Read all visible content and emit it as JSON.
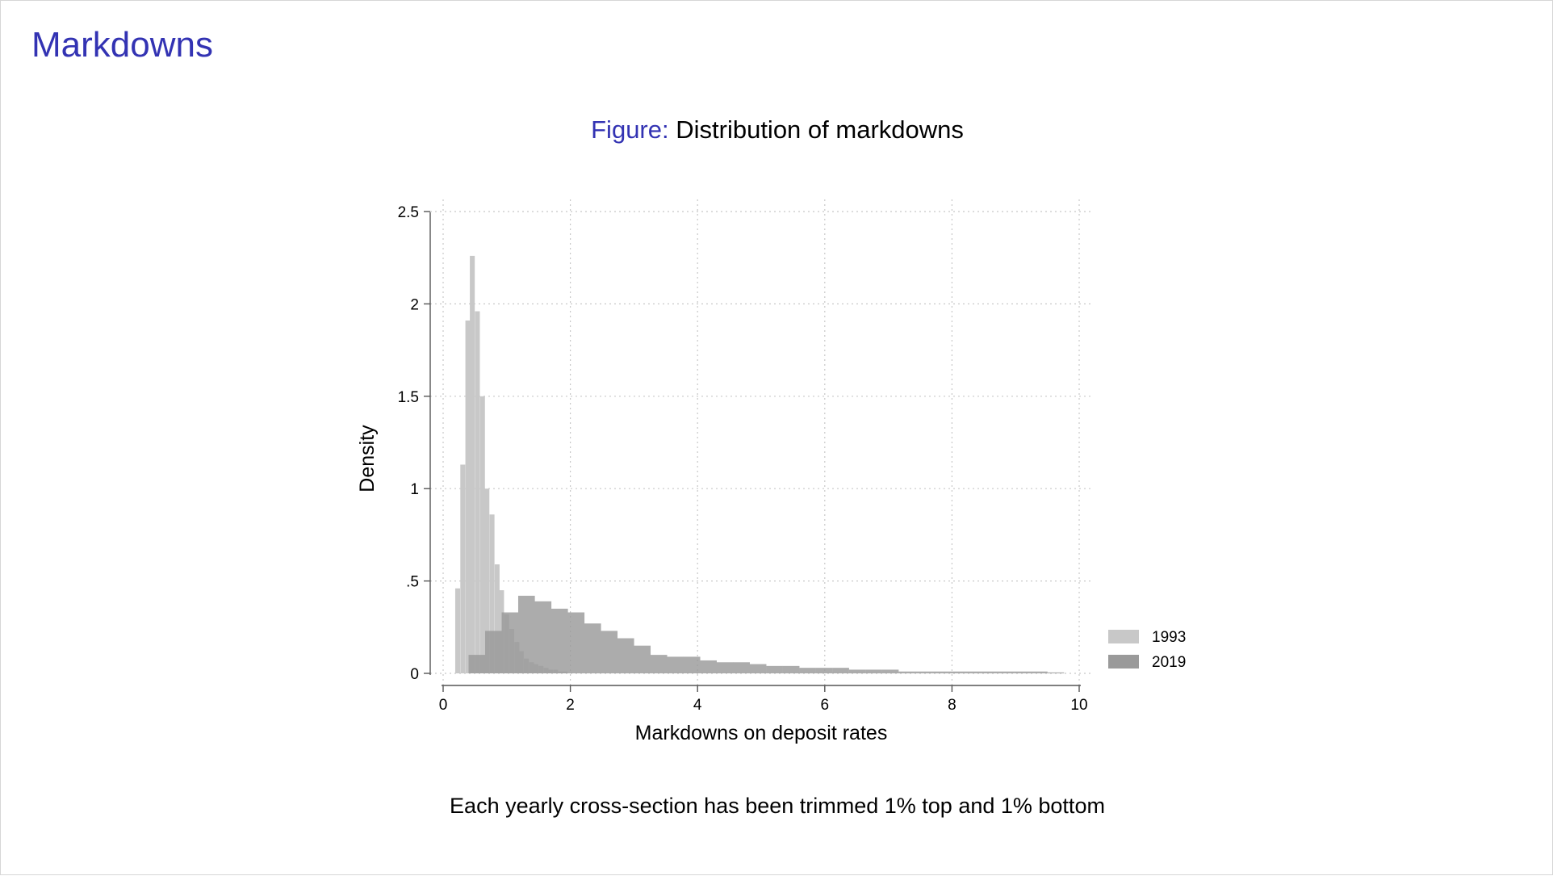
{
  "slide": {
    "title": "Markdowns"
  },
  "figure": {
    "label": "Figure:",
    "caption": "Distribution of markdowns",
    "note": "Each yearly cross-section has been trimmed 1% top and 1% bottom"
  },
  "colors": {
    "title_accent": "#3333b3",
    "series_1993": "#c8c8c8",
    "series_2019": "#9a9a9a",
    "overlap": "#8c8c8c"
  },
  "chart_data": {
    "type": "bar",
    "title": "",
    "xlabel": "Markdowns on deposit rates",
    "ylabel": "Density",
    "xlim": [
      0,
      10
    ],
    "ylim": [
      0,
      2.5
    ],
    "xticks": [
      0,
      2,
      4,
      6,
      8,
      10
    ],
    "xtick_labels": [
      "0",
      "2",
      "4",
      "6",
      "8",
      "10"
    ],
    "yticks": [
      0,
      0.5,
      1,
      1.5,
      2,
      2.5
    ],
    "ytick_labels": [
      "0",
      ".5",
      "1",
      "1.5",
      "2",
      "2.5"
    ],
    "grid": true,
    "legend_position": "right",
    "series": [
      {
        "name": "1993",
        "bin_width": 0.077,
        "bins": [
          {
            "x0": 0.19,
            "y": 0.46
          },
          {
            "x0": 0.27,
            "y": 1.13
          },
          {
            "x0": 0.35,
            "y": 1.91
          },
          {
            "x0": 0.42,
            "y": 2.26
          },
          {
            "x0": 0.5,
            "y": 1.96
          },
          {
            "x0": 0.58,
            "y": 1.5
          },
          {
            "x0": 0.65,
            "y": 1.0
          },
          {
            "x0": 0.73,
            "y": 0.86
          },
          {
            "x0": 0.81,
            "y": 0.59
          },
          {
            "x0": 0.88,
            "y": 0.45
          },
          {
            "x0": 0.96,
            "y": 0.32
          },
          {
            "x0": 1.04,
            "y": 0.24
          },
          {
            "x0": 1.12,
            "y": 0.17
          },
          {
            "x0": 1.19,
            "y": 0.12
          },
          {
            "x0": 1.27,
            "y": 0.08
          },
          {
            "x0": 1.35,
            "y": 0.06
          },
          {
            "x0": 1.42,
            "y": 0.05
          },
          {
            "x0": 1.5,
            "y": 0.04
          },
          {
            "x0": 1.58,
            "y": 0.03
          },
          {
            "x0": 1.65,
            "y": 0.02
          },
          {
            "x0": 1.73,
            "y": 0.02
          },
          {
            "x0": 1.81,
            "y": 0.01
          },
          {
            "x0": 1.88,
            "y": 0.01
          }
        ]
      },
      {
        "name": "2019",
        "bin_width": 0.262,
        "bins": [
          {
            "x0": 0.4,
            "y": 0.1
          },
          {
            "x0": 0.66,
            "y": 0.23
          },
          {
            "x0": 0.92,
            "y": 0.33
          },
          {
            "x0": 1.18,
            "y": 0.42
          },
          {
            "x0": 1.44,
            "y": 0.39
          },
          {
            "x0": 1.7,
            "y": 0.35
          },
          {
            "x0": 1.96,
            "y": 0.33
          },
          {
            "x0": 2.22,
            "y": 0.27
          },
          {
            "x0": 2.48,
            "y": 0.23
          },
          {
            "x0": 2.74,
            "y": 0.19
          },
          {
            "x0": 3.0,
            "y": 0.15
          },
          {
            "x0": 3.26,
            "y": 0.1
          },
          {
            "x0": 3.52,
            "y": 0.09
          },
          {
            "x0": 3.78,
            "y": 0.09
          },
          {
            "x0": 4.04,
            "y": 0.07
          },
          {
            "x0": 4.3,
            "y": 0.06
          },
          {
            "x0": 4.56,
            "y": 0.06
          },
          {
            "x0": 4.82,
            "y": 0.05
          },
          {
            "x0": 5.08,
            "y": 0.04
          },
          {
            "x0": 5.34,
            "y": 0.04
          },
          {
            "x0": 5.6,
            "y": 0.03
          },
          {
            "x0": 5.86,
            "y": 0.03
          },
          {
            "x0": 6.12,
            "y": 0.03
          },
          {
            "x0": 6.38,
            "y": 0.02
          },
          {
            "x0": 6.64,
            "y": 0.02
          },
          {
            "x0": 6.9,
            "y": 0.02
          },
          {
            "x0": 7.16,
            "y": 0.01
          },
          {
            "x0": 7.42,
            "y": 0.01
          },
          {
            "x0": 7.68,
            "y": 0.01
          },
          {
            "x0": 7.94,
            "y": 0.01
          },
          {
            "x0": 8.2,
            "y": 0.01
          },
          {
            "x0": 8.46,
            "y": 0.01
          },
          {
            "x0": 8.72,
            "y": 0.01
          },
          {
            "x0": 8.98,
            "y": 0.01
          },
          {
            "x0": 9.24,
            "y": 0.01
          },
          {
            "x0": 9.5,
            "y": 0.005
          }
        ]
      }
    ]
  }
}
